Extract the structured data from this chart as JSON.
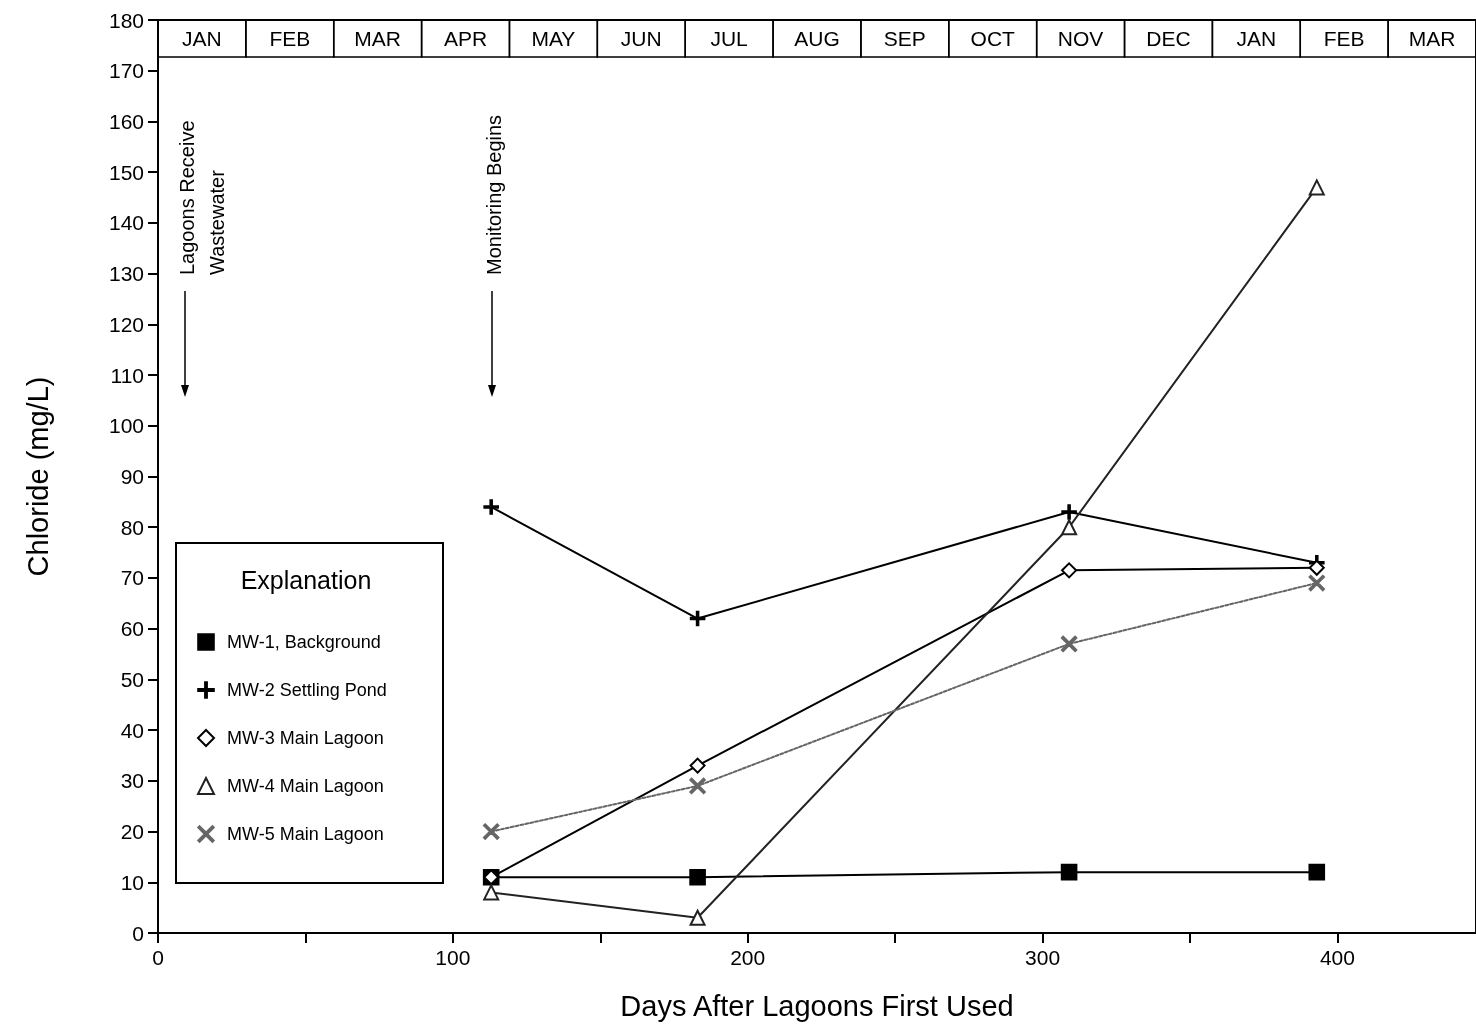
{
  "chart_data": {
    "type": "line",
    "xlabel": "Days After Lagoons First Used",
    "ylabel": "Chloride (mg/L)",
    "legend_title": "Explanation",
    "legend": "bottom left",
    "x": [
      113,
      183,
      309,
      393
    ],
    "xlim": [
      0,
      447
    ],
    "xticks": [
      0,
      {
        "value": 50,
        "label": null
      },
      100,
      {
        "value": 150,
        "label": null
      },
      200,
      {
        "value": 250,
        "label": null
      },
      300,
      {
        "value": 350,
        "label": null
      },
      400
    ],
    "ylim": [
      0,
      180
    ],
    "yticks": [
      0,
      10,
      20,
      30,
      40,
      50,
      60,
      70,
      80,
      90,
      100,
      110,
      120,
      130,
      140,
      150,
      160,
      170,
      180
    ],
    "grid": false,
    "annotations": [
      "Lagoons Receive Wastewater",
      "Monitoring Begins",
      "JAN",
      "FEB",
      "MAR",
      "APR",
      "MAY",
      "JUN",
      "JUL",
      "AUG",
      "SEP",
      "OCT",
      "NOV",
      "DEC",
      "JAN",
      "FEB",
      "MAR"
    ],
    "series": [
      {
        "name": "MW-1, Background",
        "color": "#000000",
        "marker": "square",
        "line_style": "solid",
        "values": [
          11,
          11,
          12,
          12
        ]
      },
      {
        "name": "MW-2 Settling Pond",
        "color": "#000000",
        "marker": "cross",
        "line_style": "solid",
        "values": [
          84,
          62,
          83,
          73
        ]
      },
      {
        "name": "MW-3 Main Lagoon",
        "color": "#000000",
        "marker": "diamond",
        "line_style": "solid",
        "values": [
          11,
          33,
          71.5,
          72
        ]
      },
      {
        "name": "MW-4 Main Lagoon",
        "color": "#222222",
        "marker": "triangle",
        "line_style": "solid",
        "values": [
          8,
          3,
          80,
          147
        ]
      },
      {
        "name": "MW-5 Main Lagoon",
        "color": "#666666",
        "marker": "x",
        "line_style": "dotted",
        "values": [
          20,
          29,
          57,
          69
        ]
      }
    ]
  }
}
